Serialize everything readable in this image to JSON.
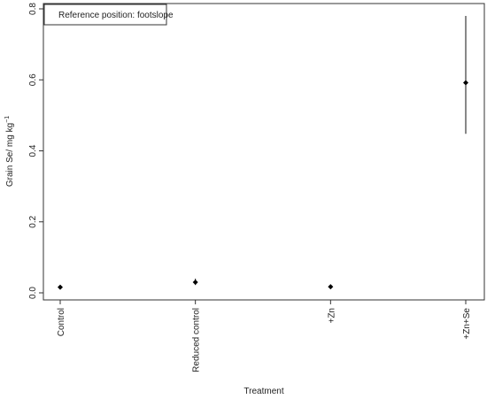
{
  "chart_data": {
    "type": "scatter",
    "xlabel": "Treatment",
    "ylabel": "Grain Se/ mg kg",
    "ylabel_superscript": "−1",
    "categories": [
      "Control",
      "Reduced control",
      "+Zn",
      "+Zn+Se"
    ],
    "series": [
      {
        "values": [
          0.016,
          0.03,
          0.017,
          0.592
        ],
        "error_low": [
          0.013,
          0.022,
          0.014,
          0.448
        ],
        "error_high": [
          0.019,
          0.04,
          0.02,
          0.78
        ]
      }
    ],
    "ylim": [
      0,
      0.8
    ],
    "yticks": [
      "0.0",
      "0.2",
      "0.4",
      "0.6",
      "0.8"
    ],
    "legend": {
      "text": "Reference position: footslope",
      "placement": "top-left"
    },
    "grid": false
  }
}
